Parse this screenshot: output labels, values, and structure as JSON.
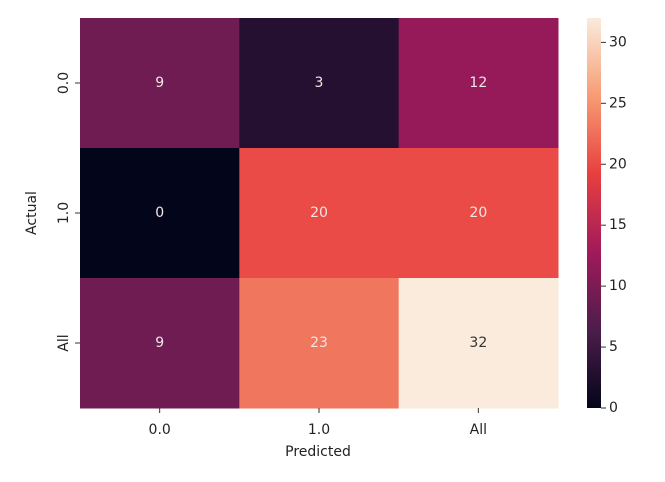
{
  "chart_data": {
    "type": "heatmap",
    "x_label": "Predicted",
    "y_label": "Actual",
    "x_categories": [
      "0.0",
      "1.0",
      "All"
    ],
    "y_categories": [
      "0.0",
      "1.0",
      "All"
    ],
    "values": [
      [
        9,
        3,
        12
      ],
      [
        0,
        20,
        20
      ],
      [
        9,
        23,
        32
      ]
    ],
    "zlim": [
      0,
      32
    ],
    "zticks": [
      0,
      5,
      10,
      15,
      20,
      25,
      30
    ],
    "colorscale": [
      "#03051a",
      "#4c1d4b",
      "#a11a5b",
      "#e83f3f",
      "#f69c73",
      "#faebdd"
    ]
  }
}
